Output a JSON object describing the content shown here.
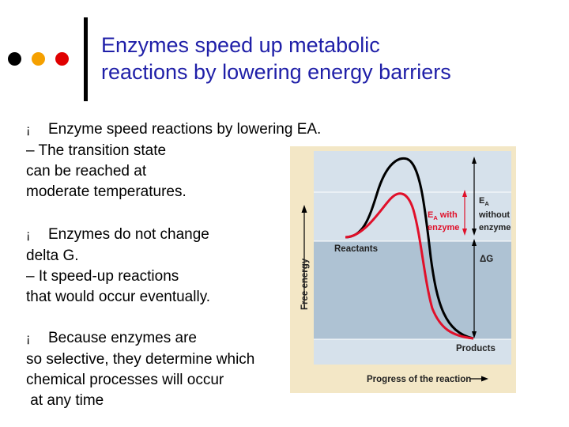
{
  "title": {
    "line1": "Enzymes speed up metabolic",
    "line2": "reactions by lowering energy barriers"
  },
  "bullets": [
    {
      "symbol": "¡",
      "lines": [
        "Enzyme speed reactions by lowering EA.",
        "– The transition state",
        "can be reached at",
        "moderate temperatures."
      ]
    },
    {
      "symbol": "¡",
      "lines": [
        "Enzymes do not change",
        "delta G.",
        "– It speed-up reactions",
        "that would occur eventually."
      ]
    },
    {
      "symbol": "¡",
      "lines": [
        "Because enzymes are",
        "so selective, they determine which",
        "chemical processes will occur",
        " at any time"
      ]
    }
  ],
  "diagram": {
    "y_axis_label": "Free energy",
    "x_axis_label": "Progress of the reaction",
    "reactants_label": "Reactants",
    "products_label": "Products",
    "ea_with_enzyme": {
      "symbol": "E",
      "subscript": "A",
      "text": "with",
      "line2": "enzyme"
    },
    "ea_without_enzyme": {
      "symbol": "E",
      "subscript": "A",
      "line2": "without",
      "line3": "enzyme"
    },
    "delta_g_label": "ΔG"
  },
  "colors": {
    "title": "#1f1fa8",
    "dot_dark": "#000000",
    "dot_orange": "#f5a000",
    "dot_red": "#e00000",
    "enzyme_curve": "#e0102a",
    "no_enzyme_curve": "#000000",
    "figure_bg": "#f3e7c6",
    "upper_band": "#d6e1eb",
    "middle_band": "#aec2d3",
    "lower_band": "#d6e1eb"
  }
}
